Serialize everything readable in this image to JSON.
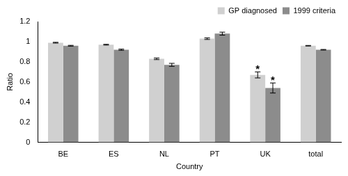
{
  "chart_data": {
    "type": "bar",
    "x_label": "Country",
    "y_label": "Ratio",
    "categories": [
      "BE",
      "ES",
      "NL",
      "PT",
      "UK",
      "total"
    ],
    "series": [
      {
        "name": "GP diagnosed",
        "color": "#d0d0d0",
        "values": [
          0.99,
          0.97,
          0.83,
          1.03,
          0.67,
          0.96
        ],
        "errors": [
          0.004,
          0.004,
          0.008,
          0.008,
          0.03,
          0.003
        ]
      },
      {
        "name": "1999 criteria",
        "color": "#8c8c8c",
        "values": [
          0.96,
          0.92,
          0.77,
          1.08,
          0.54,
          0.92
        ],
        "errors": [
          0.004,
          0.006,
          0.015,
          0.015,
          0.05,
          0.003
        ]
      }
    ],
    "ylim": [
      0,
      1.2
    ],
    "yticks": [
      0,
      0.2,
      0.4,
      0.6,
      0.8,
      1,
      1.2
    ],
    "grid": false,
    "legend": "top-right",
    "annotations": [
      {
        "text": "*",
        "category": "UK",
        "series": "GP diagnosed"
      },
      {
        "text": "*",
        "category": "UK",
        "series": "1999 criteria"
      }
    ]
  }
}
